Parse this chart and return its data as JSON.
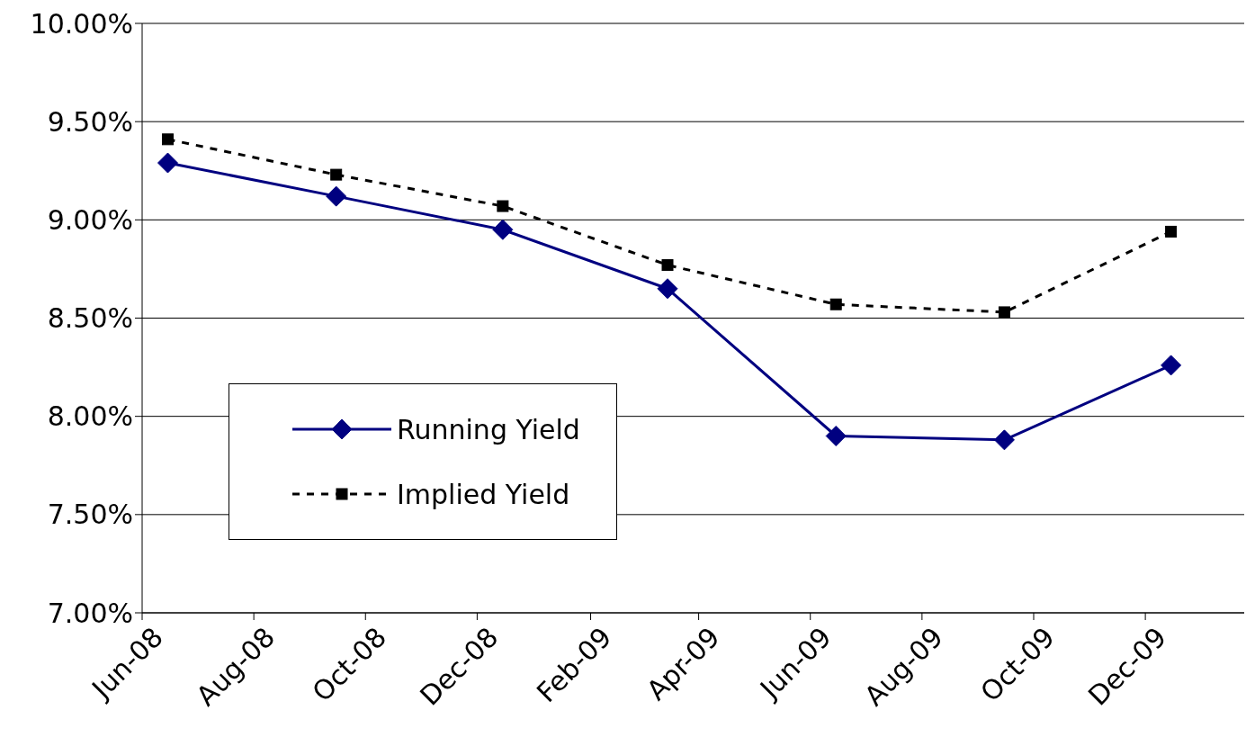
{
  "chart_data": {
    "type": "line",
    "x": [
      "2008-06-15",
      "2008-09-15",
      "2008-12-15",
      "2009-03-15",
      "2009-06-15",
      "2009-09-15",
      "2009-12-15"
    ],
    "series": [
      {
        "name": "Running Yield",
        "color": "#000080",
        "values": [
          9.29,
          9.12,
          8.95,
          8.65,
          7.9,
          7.88,
          8.26
        ],
        "marker": "diamond",
        "line_style": "solid"
      },
      {
        "name": "Implied Yield",
        "color": "#000000",
        "values": [
          9.41,
          9.23,
          9.07,
          8.77,
          8.57,
          8.53,
          8.94
        ],
        "marker": "square",
        "line_style": "dashed"
      }
    ],
    "xlim": [
      "2008-06-01",
      "2010-01-24"
    ],
    "xticks": [
      {
        "value": "2008-06-01",
        "label": "Jun-08"
      },
      {
        "value": "2008-08-01",
        "label": "Aug-08"
      },
      {
        "value": "2008-10-01",
        "label": "Oct-08"
      },
      {
        "value": "2008-12-01",
        "label": "Dec-08"
      },
      {
        "value": "2009-02-01",
        "label": "Feb-09"
      },
      {
        "value": "2009-04-01",
        "label": "Apr-09"
      },
      {
        "value": "2009-06-01",
        "label": "Jun-09"
      },
      {
        "value": "2009-08-01",
        "label": "Aug-09"
      },
      {
        "value": "2009-10-01",
        "label": "Oct-09"
      },
      {
        "value": "2009-12-01",
        "label": "Dec-09"
      }
    ],
    "ylim": [
      7,
      10
    ],
    "yticks": [
      {
        "value": 7,
        "label": "7.00%"
      },
      {
        "value": 7.5,
        "label": "7.50%"
      },
      {
        "value": 8,
        "label": "8.00%"
      },
      {
        "value": 8.5,
        "label": "8.50%"
      },
      {
        "value": 9,
        "label": "9.00%"
      },
      {
        "value": 9.5,
        "label": "9.50%"
      },
      {
        "value": 10,
        "label": "10.00%"
      }
    ],
    "grid": "y",
    "legend": "bottom left"
  }
}
